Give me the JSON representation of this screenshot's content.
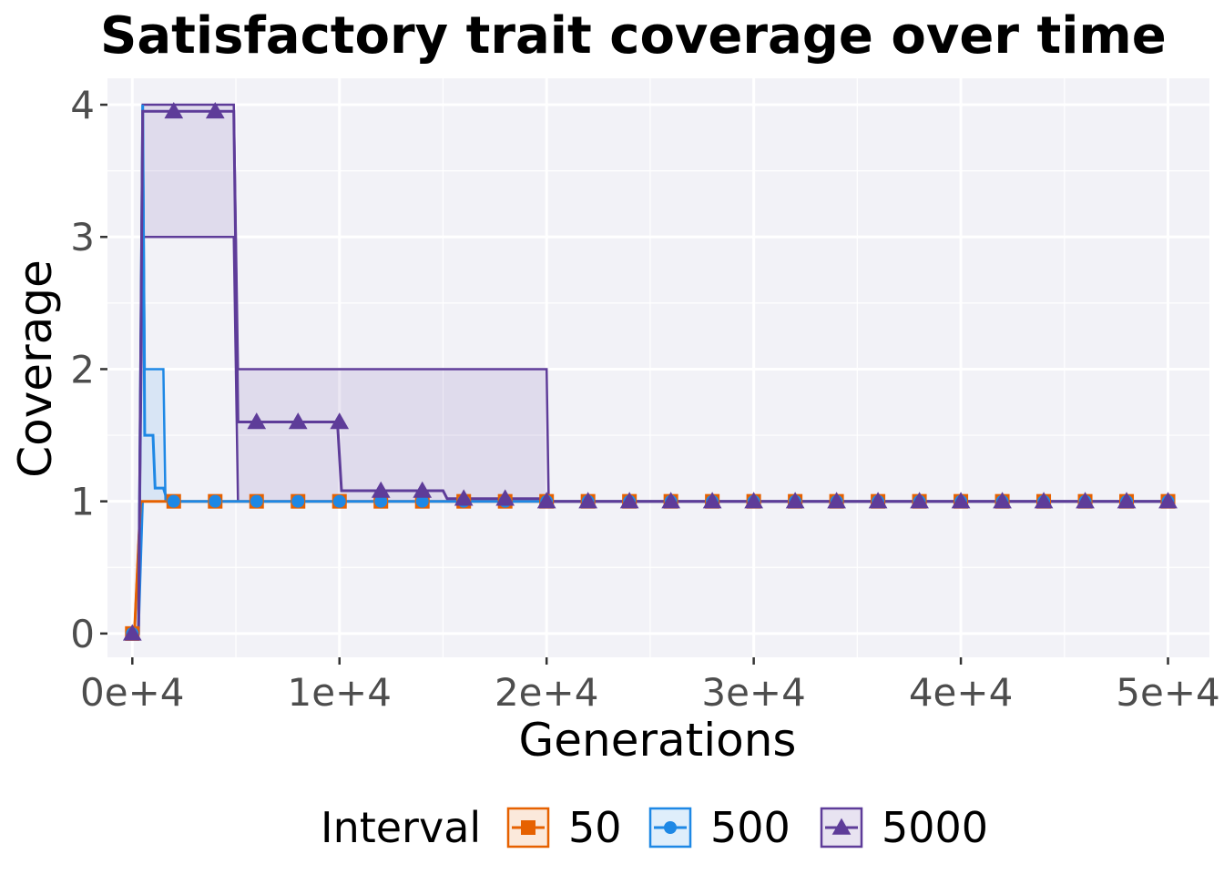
{
  "chart_data": {
    "type": "line",
    "title": "Satisfactory trait coverage over time",
    "xlabel": "Generations",
    "ylabel": "Coverage",
    "xlim": [
      -1200,
      52000
    ],
    "ylim": [
      -0.18,
      4.2
    ],
    "x_ticks": [
      0,
      10000,
      20000,
      30000,
      40000,
      50000
    ],
    "x_tick_labels": [
      "0e+4",
      "1e+4",
      "2e+4",
      "3e+4",
      "4e+4",
      "5e+4"
    ],
    "y_ticks": [
      0,
      1,
      2,
      3,
      4
    ],
    "y_tick_labels": [
      "0",
      "1",
      "2",
      "3",
      "4"
    ],
    "grid": true,
    "legend": {
      "title": "Interval",
      "position": "bottom"
    },
    "series": [
      {
        "name": "50",
        "color": "#E66100",
        "marker": "square",
        "median": [
          [
            0,
            0
          ],
          [
            100,
            0
          ],
          [
            400,
            1
          ],
          [
            50000,
            1
          ]
        ],
        "band_upper": [
          [
            0,
            0
          ],
          [
            100,
            0
          ],
          [
            400,
            1
          ],
          [
            50000,
            1
          ]
        ],
        "band_lower": [
          [
            0,
            0
          ],
          [
            100,
            0
          ],
          [
            400,
            1
          ],
          [
            50000,
            1
          ]
        ],
        "points": [
          [
            0,
            0
          ],
          [
            2000,
            1
          ],
          [
            4000,
            1
          ],
          [
            6000,
            1
          ],
          [
            8000,
            1
          ],
          [
            10000,
            1
          ],
          [
            12000,
            1
          ],
          [
            14000,
            1
          ],
          [
            16000,
            1
          ],
          [
            18000,
            1
          ],
          [
            20000,
            1
          ],
          [
            22000,
            1
          ],
          [
            24000,
            1
          ],
          [
            26000,
            1
          ],
          [
            28000,
            1
          ],
          [
            30000,
            1
          ],
          [
            32000,
            1
          ],
          [
            34000,
            1
          ],
          [
            36000,
            1
          ],
          [
            38000,
            1
          ],
          [
            40000,
            1
          ],
          [
            42000,
            1
          ],
          [
            44000,
            1
          ],
          [
            46000,
            1
          ],
          [
            48000,
            1
          ],
          [
            50000,
            1
          ]
        ]
      },
      {
        "name": "500",
        "color": "#1E88E5",
        "marker": "circle",
        "median": [
          [
            0,
            0
          ],
          [
            300,
            0
          ],
          [
            500,
            4
          ],
          [
            600,
            1.5
          ],
          [
            1000,
            1.5
          ],
          [
            1100,
            1.1
          ],
          [
            1500,
            1.1
          ],
          [
            1700,
            1
          ],
          [
            50000,
            1
          ]
        ],
        "band_upper": [
          [
            0,
            0
          ],
          [
            300,
            0
          ],
          [
            500,
            4
          ],
          [
            600,
            2
          ],
          [
            1500,
            2
          ],
          [
            1600,
            1
          ],
          [
            50000,
            1
          ]
        ],
        "band_lower": [
          [
            0,
            0
          ],
          [
            300,
            0
          ],
          [
            500,
            1
          ],
          [
            50000,
            1
          ]
        ],
        "points": [
          [
            0,
            0
          ],
          [
            2000,
            1
          ],
          [
            4000,
            1
          ],
          [
            6000,
            1
          ],
          [
            8000,
            1
          ],
          [
            10000,
            1
          ],
          [
            12000,
            1
          ],
          [
            14000,
            1
          ],
          [
            16000,
            1
          ],
          [
            18000,
            1
          ],
          [
            20000,
            1
          ],
          [
            22000,
            1
          ],
          [
            24000,
            1
          ],
          [
            26000,
            1
          ],
          [
            28000,
            1
          ],
          [
            30000,
            1
          ],
          [
            32000,
            1
          ],
          [
            34000,
            1
          ],
          [
            36000,
            1
          ],
          [
            38000,
            1
          ],
          [
            40000,
            1
          ],
          [
            42000,
            1
          ],
          [
            44000,
            1
          ],
          [
            46000,
            1
          ],
          [
            48000,
            1
          ],
          [
            50000,
            1
          ]
        ]
      },
      {
        "name": "5000",
        "color": "#5E3C99",
        "marker": "triangle",
        "median": [
          [
            0,
            0
          ],
          [
            300,
            0
          ],
          [
            500,
            3.95
          ],
          [
            4900,
            3.95
          ],
          [
            5100,
            1.6
          ],
          [
            9900,
            1.6
          ],
          [
            10100,
            1.08
          ],
          [
            15000,
            1.08
          ],
          [
            15200,
            1.02
          ],
          [
            20000,
            1.02
          ],
          [
            20100,
            1
          ],
          [
            50000,
            1
          ]
        ],
        "band_upper": [
          [
            0,
            0
          ],
          [
            300,
            0
          ],
          [
            500,
            4
          ],
          [
            4900,
            4
          ],
          [
            5100,
            2
          ],
          [
            20000,
            2
          ],
          [
            20100,
            1
          ],
          [
            50000,
            1
          ]
        ],
        "band_lower": [
          [
            0,
            0
          ],
          [
            300,
            0
          ],
          [
            500,
            3
          ],
          [
            4900,
            3
          ],
          [
            5100,
            1
          ],
          [
            50000,
            1
          ]
        ],
        "points": [
          [
            0,
            0
          ],
          [
            2000,
            3.95
          ],
          [
            4000,
            3.95
          ],
          [
            6000,
            1.6
          ],
          [
            8000,
            1.6
          ],
          [
            10000,
            1.6
          ],
          [
            12000,
            1.08
          ],
          [
            14000,
            1.08
          ],
          [
            16000,
            1.02
          ],
          [
            18000,
            1.02
          ],
          [
            20000,
            1
          ],
          [
            22000,
            1
          ],
          [
            24000,
            1
          ],
          [
            26000,
            1
          ],
          [
            28000,
            1
          ],
          [
            30000,
            1
          ],
          [
            32000,
            1
          ],
          [
            34000,
            1
          ],
          [
            36000,
            1
          ],
          [
            38000,
            1
          ],
          [
            40000,
            1
          ],
          [
            42000,
            1
          ],
          [
            44000,
            1
          ],
          [
            46000,
            1
          ],
          [
            48000,
            1
          ],
          [
            50000,
            1
          ]
        ]
      }
    ]
  }
}
